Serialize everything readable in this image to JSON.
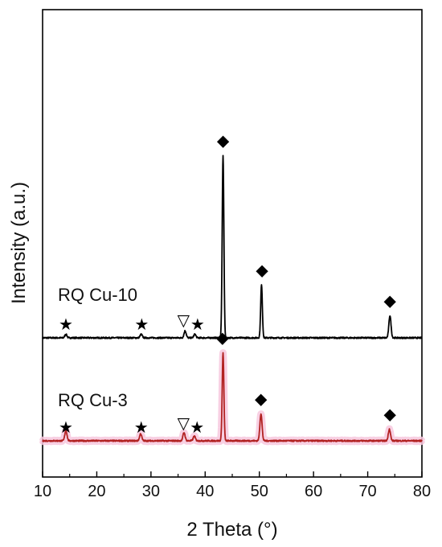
{
  "chart_data": {
    "type": "line",
    "title": "",
    "xlabel": "2 Theta (°)",
    "ylabel": "Intensity (a.u.)",
    "xlim": [
      10,
      80
    ],
    "xticks": [
      "10",
      "20",
      "30",
      "40",
      "50",
      "60",
      "70",
      "80"
    ],
    "yticks_shown": false,
    "grid": false,
    "legend": "none",
    "series": [
      {
        "name": "RQ Cu-10",
        "color": "#000000",
        "baseline": 1.0,
        "peaks": [
          {
            "x": 14.3,
            "height": 0.03
          },
          {
            "x": 28.2,
            "height": 0.03
          },
          {
            "x": 36.3,
            "height": 0.06
          },
          {
            "x": 38.1,
            "height": 0.03
          },
          {
            "x": 43.3,
            "height": 1.55
          },
          {
            "x": 50.4,
            "height": 0.45
          },
          {
            "x": 74.1,
            "height": 0.19
          }
        ],
        "annotations": [
          {
            "symbol": "★",
            "x": 14.3,
            "kind": "star"
          },
          {
            "symbol": "★",
            "x": 28.3,
            "kind": "star"
          },
          {
            "symbol": "▽",
            "x": 36.0,
            "kind": "triangle"
          },
          {
            "symbol": "★",
            "x": 38.6,
            "kind": "star"
          },
          {
            "symbol": "◆",
            "x": 43.3,
            "kind": "diamond"
          },
          {
            "symbol": "◆",
            "x": 50.5,
            "kind": "diamond"
          },
          {
            "symbol": "◆",
            "x": 74.1,
            "kind": "diamond"
          }
        ]
      },
      {
        "name": "RQ Cu-3",
        "color": "#b22222",
        "fill": "#f7c8de",
        "baseline": 0.0,
        "peaks": [
          {
            "x": 14.3,
            "height": 0.09
          },
          {
            "x": 28.1,
            "height": 0.06
          },
          {
            "x": 36.1,
            "height": 0.07
          },
          {
            "x": 38.0,
            "height": 0.04
          },
          {
            "x": 43.3,
            "height": 0.75
          },
          {
            "x": 50.3,
            "height": 0.23
          },
          {
            "x": 74.0,
            "height": 0.1
          }
        ],
        "annotations": [
          {
            "symbol": "★",
            "x": 14.3,
            "kind": "star"
          },
          {
            "symbol": "★",
            "x": 28.2,
            "kind": "star"
          },
          {
            "symbol": "▽",
            "x": 36.0,
            "kind": "triangle"
          },
          {
            "symbol": "★",
            "x": 38.5,
            "kind": "star"
          },
          {
            "symbol": "◆",
            "x": 43.2,
            "kind": "diamond"
          },
          {
            "symbol": "◆",
            "x": 50.3,
            "kind": "diamond"
          },
          {
            "symbol": "◆",
            "x": 74.1,
            "kind": "diamond"
          }
        ]
      }
    ]
  }
}
